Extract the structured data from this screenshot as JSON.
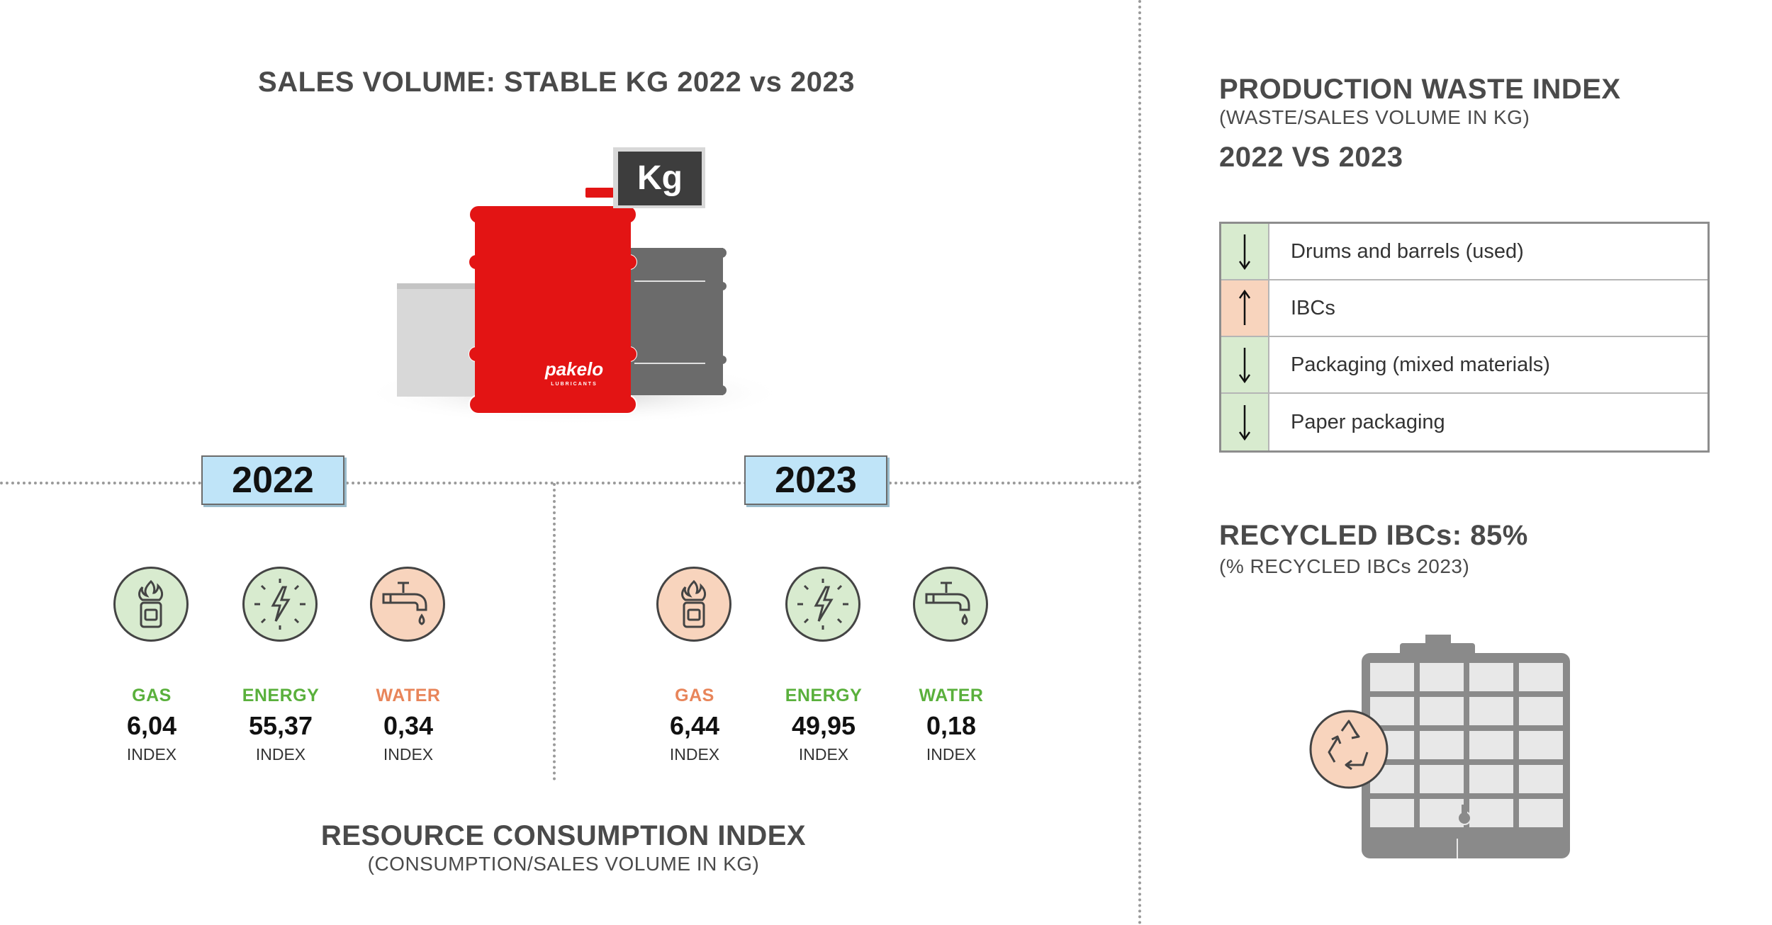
{
  "sales": {
    "title": "SALES VOLUME: STABLE KG 2022 vs 2023",
    "kg_label": "Kg",
    "brand": "pakelo",
    "brand_sub": "LUBRICANTS"
  },
  "years": {
    "y2022": "2022",
    "y2023": "2023"
  },
  "resources": {
    "y2022": [
      {
        "label": "GAS",
        "value": "6,04",
        "index": "INDEX",
        "color": "green",
        "icon": "gas-canister-icon"
      },
      {
        "label": "ENERGY",
        "value": "55,37",
        "index": "INDEX",
        "color": "green",
        "icon": "lightning-icon"
      },
      {
        "label": "WATER",
        "value": "0,34",
        "index": "INDEX",
        "color": "orange",
        "icon": "water-tap-icon"
      }
    ],
    "y2023": [
      {
        "label": "GAS",
        "value": "6,44",
        "index": "INDEX",
        "color": "orange",
        "icon": "gas-canister-icon"
      },
      {
        "label": "ENERGY",
        "value": "49,95",
        "index": "INDEX",
        "color": "green",
        "icon": "lightning-icon"
      },
      {
        "label": "WATER",
        "value": "0,18",
        "index": "INDEX",
        "color": "green",
        "icon": "water-tap-icon"
      }
    ]
  },
  "consumption": {
    "title": "RESOURCE CONSUMPTION INDEX",
    "subtitle": "(CONSUMPTION/SALES VOLUME IN KG)"
  },
  "waste": {
    "title": "PRODUCTION WASTE INDEX",
    "subtitle": "(WASTE/SALES VOLUME IN KG)",
    "comparison": "2022 VS 2023",
    "rows": [
      {
        "label": "Drums and barrels (used)",
        "trend": "down",
        "color": "#d8ebcf"
      },
      {
        "label": "IBCs",
        "trend": "up",
        "color": "#f8d4bd"
      },
      {
        "label": "Packaging (mixed materials)",
        "trend": "down",
        "color": "#d8ebcf"
      },
      {
        "label": "Paper packaging",
        "trend": "down",
        "color": "#d8ebcf"
      }
    ]
  },
  "recycled": {
    "title": "RECYCLED IBCs: 85%",
    "subtitle": "(% RECYCLED IBCs 2023)"
  },
  "colors": {
    "green_bg": "#d8ebcf",
    "orange_bg": "#f8d4bd",
    "green_text": "#5ab03c",
    "orange_text": "#e8855a",
    "drum_red": "#e31414",
    "year_box": "#bfe4f8"
  }
}
